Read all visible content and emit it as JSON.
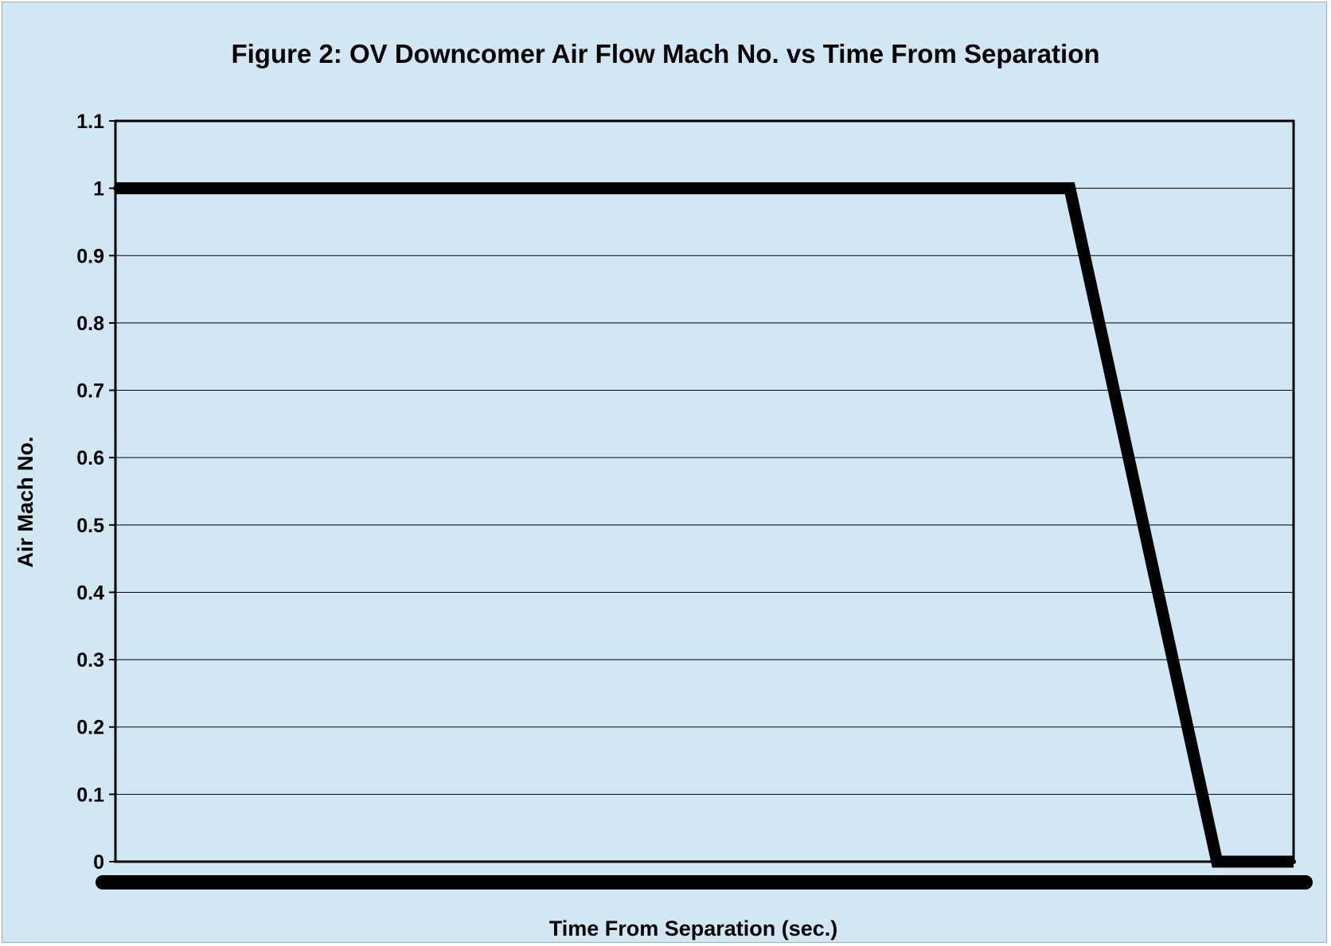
{
  "chart_data": {
    "type": "line",
    "title": "Figure 2: OV Downcomer Air Flow Mach No. vs Time From Separation",
    "xlabel": "Time From Separation (sec.)",
    "ylabel": "Air Mach No.",
    "ylim": [
      0,
      1.1
    ],
    "yticks": [
      "0",
      "0.1",
      "0.2",
      "0.3",
      "0.4",
      "0.5",
      "0.6",
      "0.7",
      "0.8",
      "0.9",
      "1",
      "1.1"
    ],
    "xlim": [
      0,
      100
    ],
    "grid": true,
    "legend": "none",
    "series": [
      {
        "color": "#000000",
        "x": [
          0,
          81,
          93.5,
          100
        ],
        "y": [
          1.0,
          1.0,
          0.0,
          0.0
        ]
      }
    ]
  }
}
